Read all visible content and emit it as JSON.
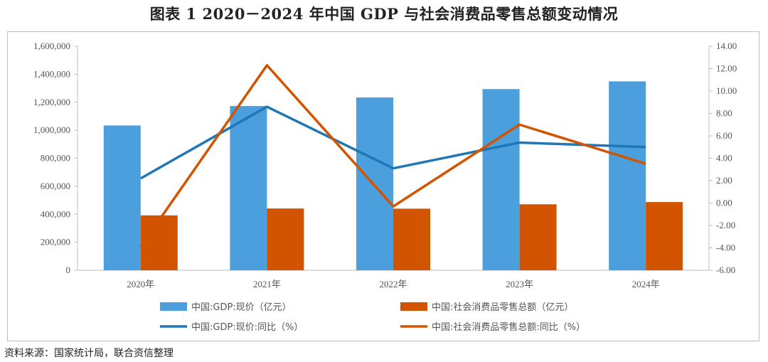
{
  "title": "图表 1    2020－2024 年中国 GDP 与社会消费品零售总额变动情况",
  "source": "资料来源：国家统计局，联合资信整理",
  "chart_data": {
    "type": "bar",
    "categories": [
      "2020年",
      "2021年",
      "2022年",
      "2023年",
      "2024年"
    ],
    "series": [
      {
        "name": "中国:GDP:现价（亿元）",
        "kind": "bar",
        "axis": "left",
        "color": "#4a9fdc",
        "values": [
          1034000,
          1173000,
          1234000,
          1294000,
          1349000
        ]
      },
      {
        "name": "中国:社会消费品零售总额（亿元）",
        "kind": "bar",
        "axis": "left",
        "color": "#d35400",
        "values": [
          392000,
          441000,
          440000,
          471000,
          487000
        ]
      },
      {
        "name": "中国:GDP:现价:同比（%）",
        "kind": "line",
        "axis": "right",
        "color": "#1f77b4",
        "values": [
          2.2,
          8.6,
          3.1,
          5.4,
          5.0
        ]
      },
      {
        "name": "中国:社会消费品零售总额:同比（%）",
        "kind": "line",
        "axis": "right",
        "color": "#d35400",
        "values": [
          -3.9,
          12.3,
          -0.3,
          7.0,
          3.5
        ]
      }
    ],
    "left_axis": {
      "ylim": [
        0,
        1600000
      ],
      "ticks": [
        "0",
        "200,000",
        "400,000",
        "600,000",
        "800,000",
        "1,000,000",
        "1,200,000",
        "1,400,000",
        "1,600,000"
      ]
    },
    "right_axis": {
      "ylim": [
        -6,
        14
      ],
      "ticks": [
        "-6.00",
        "-4.00",
        "-2.00",
        "0.00",
        "2.00",
        "4.00",
        "6.00",
        "8.00",
        "10.00",
        "12.00",
        "14.00"
      ]
    },
    "grid": false,
    "legend": "bottom"
  }
}
